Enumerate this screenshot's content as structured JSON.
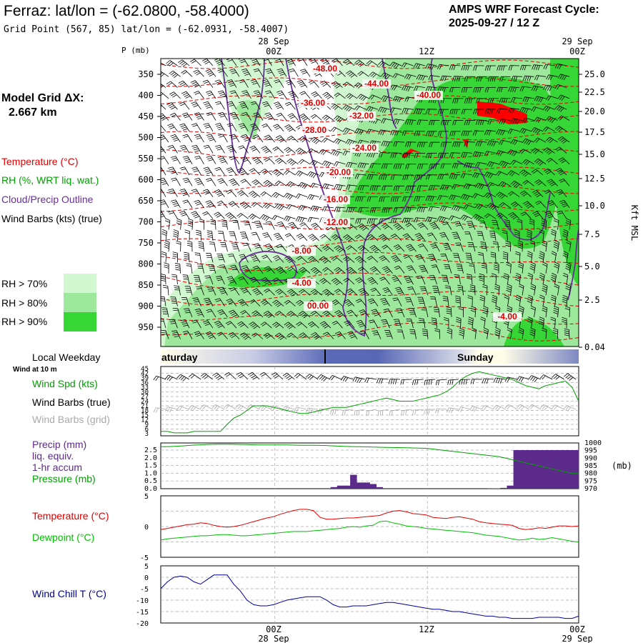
{
  "header": {
    "title": "Ferraz:  lat/lon = (-62.0800, -58.4000)",
    "subtitle": "Grid Point (567, 85) lat/lon = (-62.0931, -58.4007)",
    "cycle_label": "AMPS WRF Forecast Cycle:",
    "cycle_value": "2025-09-27 / 12  Z"
  },
  "model_grid": {
    "label": "Model Grid ΔX:",
    "value": "2.667 km"
  },
  "legend": {
    "temperature": "Temperature (°C)",
    "rh": "RH (%, WRT liq. wat.)",
    "cloud": "Cloud/Precip Outline",
    "wind": "Wind Barbs (kts) (true)",
    "rh70": "RH > 70%",
    "rh80": "RH > 80%",
    "rh90": "RH > 90%"
  },
  "colors": {
    "temperature": "#e00000",
    "rh_text": "#00a000",
    "cloud": "#6a2d9a",
    "rh70": "#d2f8d2",
    "rh80": "#9de89d",
    "rh90": "#36d636",
    "precip": "#5c2a8a",
    "pressure": "#00a000",
    "dewpoint": "#00c000",
    "windchill": "#0000a0",
    "grid_gray": "#aaaaaa"
  },
  "time_axis": {
    "top_dates": [
      "28 Sep",
      "29 Sep"
    ],
    "ticks": [
      "00Z",
      "12Z",
      "00Z"
    ],
    "bottom_dates": [
      "28 Sep",
      "29 Sep"
    ]
  },
  "weekday": {
    "label": "Local Weekday",
    "days": [
      "aturday",
      "Sunday"
    ]
  },
  "wind_panel": {
    "note": "Wind at 10 m",
    "spd_label": "Wind Spd (kts)",
    "barbs_true": "Wind Barbs (true)",
    "barbs_grid": "Wind Barbs (grid)"
  },
  "precip_panel": {
    "label1": "Precip (mm)",
    "label2": "liq. equiv.",
    "label3": "1-hr accum",
    "label4": "Pressure (mb)",
    "right_unit": "(mb)"
  },
  "temp_panel": {
    "t_label": "Temperature (°C)",
    "td_label": "Dewpoint (°C)"
  },
  "chill_panel": {
    "label": "Wind Chill T (°C)"
  },
  "chart_data": [
    {
      "type": "heatmap",
      "name": "cross_section",
      "y_label_left": "P (mb)",
      "y_label_right": "Kft MSL",
      "pressure_ticks": [
        "350",
        "400",
        "450",
        "500",
        "550",
        "600",
        "650",
        "700",
        "750",
        "800",
        "850",
        "900",
        "950"
      ],
      "height_ticks": [
        "25.0",
        "22.5",
        "20.0",
        "17.5",
        "15.0",
        "12.5",
        "10.0",
        "7.5",
        "5.0",
        "2.5",
        "0.04"
      ],
      "isotherm_labels": [
        "-48.00",
        "-44.00",
        "-40.00",
        "-36.00",
        "-32.00",
        "-28.00",
        "-24.00",
        "-20.00",
        "-16.00",
        "-12.00",
        "-8.00",
        "-4.00",
        "00.00",
        "-4.00"
      ]
    },
    {
      "type": "line",
      "name": "wind_speed",
      "y_ticks": [
        "45",
        "42",
        "39",
        "36",
        "33",
        "30",
        "27",
        "24",
        "21",
        "18",
        "15",
        "12",
        "9",
        "6",
        "3"
      ],
      "ylim": [
        3,
        45
      ],
      "series": [
        {
          "values": [
            4.5,
            4.5,
            3.5,
            3.5,
            3.5,
            4.5,
            4.5,
            4.5,
            4.5,
            4.5,
            9,
            13,
            15,
            18,
            21,
            21,
            21,
            20,
            19,
            18,
            17,
            16,
            16,
            17,
            18,
            19,
            20,
            20,
            20,
            21,
            22,
            23,
            24,
            25,
            26,
            25,
            24,
            24,
            24,
            25,
            26,
            27,
            28,
            30,
            33,
            37,
            40,
            42,
            43,
            42,
            41,
            40,
            39,
            38,
            36,
            34,
            33,
            32,
            34,
            35,
            36,
            37,
            33,
            24
          ]
        }
      ]
    },
    {
      "type": "bar",
      "name": "precip_pressure",
      "precip_ticks": [
        "2.5",
        "2.0",
        "1.5",
        "1.0",
        "0.5",
        "0.0"
      ],
      "pressure_ticks": [
        "1000",
        "995",
        "990",
        "985",
        "980",
        "975",
        "970"
      ],
      "ylim_precip": [
        0,
        2.5
      ],
      "ylim_pressure": [
        970,
        1000
      ],
      "precip": [
        0,
        0,
        0,
        0,
        0,
        0,
        0,
        0,
        0,
        0,
        0,
        0,
        0,
        0,
        0,
        0,
        0,
        0,
        0,
        0,
        0,
        0,
        0,
        0,
        0,
        0,
        0.1,
        0.2,
        0.2,
        0.9,
        0.4,
        0.4,
        0.3,
        0.1,
        0,
        0,
        0,
        0,
        0,
        0,
        0,
        0,
        0,
        0,
        0,
        0,
        0,
        0,
        0,
        0,
        0.02,
        0.02,
        0.05,
        0.2,
        2.5,
        2.5,
        2.5,
        2.5,
        2.5,
        2.5,
        2.5,
        2.5,
        2.5,
        2.5
      ],
      "pressure": [
        997.5,
        997.6,
        997.8,
        998,
        998.3,
        998.6,
        998.8,
        999,
        999.1,
        999.2,
        999.2,
        999.1,
        999,
        998.9,
        998.8,
        998.7,
        998.7,
        998.7,
        998.7,
        998.7,
        998.6,
        998.5,
        998.5,
        998.5,
        998.4,
        998.3,
        998.1,
        997.9,
        997.7,
        997.6,
        997.5,
        997.4,
        997.3,
        997.2,
        997.1,
        997,
        996.9,
        996.8,
        996.7,
        996.6,
        996.5,
        996,
        995.5,
        995,
        994.5,
        994,
        993.5,
        993,
        992.5,
        992,
        991.5,
        991,
        990,
        989,
        988,
        987,
        986,
        985,
        984,
        983,
        982,
        981,
        980,
        980
      ]
    },
    {
      "type": "line",
      "name": "temperature_dewpoint",
      "y_ticks": [
        "5",
        "0",
        "-5"
      ],
      "ylim": [
        -5,
        5
      ],
      "series": [
        {
          "name": "Temperature (°C)",
          "values": [
            -0.5,
            -0.3,
            -0.1,
            0.1,
            0.3,
            0.4,
            0.6,
            0.5,
            0.2,
            0,
            -0.1,
            0,
            0.2,
            0.5,
            0.8,
            1.1,
            1.4,
            1.6,
            2,
            2.3,
            2.6,
            2.8,
            2.8,
            2.6,
            1.5,
            1.2,
            1.2,
            1.3,
            1.4,
            1.4,
            1.5,
            1.6,
            1.7,
            1.8,
            2.2,
            2.5,
            2.6,
            2.4,
            2.1,
            2,
            1.9,
            1.5,
            1.4,
            1.3,
            1.5,
            1.6,
            1.4,
            1.2,
            0.8,
            0.6,
            0.5,
            0.4,
            0.3,
            0.2,
            -0.3,
            -0.5,
            -0.4,
            -0.2,
            -0.3,
            -0.1,
            0.1,
            0.1,
            0,
            0.1
          ]
        },
        {
          "name": "Dewpoint (°C)",
          "values": [
            -2.2,
            -2,
            -1.9,
            -1.8,
            -1.7,
            -1.6,
            -1.5,
            -1.5,
            -1.4,
            -1.3,
            -1.3,
            -1.4,
            -1.5,
            -1.5,
            -1.4,
            -1.3,
            -1.2,
            -1.1,
            -1,
            -0.9,
            -0.8,
            -0.8,
            -0.8,
            -0.7,
            -0.6,
            -0.5,
            -0.4,
            -0.3,
            -0.1,
            0,
            -0.1,
            0.1,
            0.2,
            0.8,
            0.9,
            0.6,
            0.4,
            0.1,
            0,
            -0.1,
            -0.3,
            -0.4,
            -0.5,
            -0.6,
            -0.7,
            -0.8,
            -0.9,
            -1,
            -1.2,
            -1.4,
            -1.5,
            -1.6,
            -1.8,
            -2,
            -2.2,
            -2.1,
            -1.9,
            -2.1,
            -2,
            -1.8,
            -2,
            -2.2,
            -2.4,
            -2.5
          ]
        }
      ]
    },
    {
      "type": "line",
      "name": "wind_chill",
      "y_ticks": [
        "5",
        "0",
        "-5",
        "-10",
        "-15",
        "-20"
      ],
      "ylim": [
        -20,
        5
      ],
      "series": [
        {
          "name": "Wind Chill T (°C)",
          "values": [
            -5,
            -2,
            0,
            0.5,
            0,
            -2,
            -3,
            -1,
            1,
            1,
            1,
            -3,
            -6,
            -10,
            -12,
            -12.5,
            -12.5,
            -12,
            -11,
            -10,
            -9.5,
            -9,
            -8.5,
            -8.5,
            -8.5,
            -10,
            -12,
            -13,
            -13,
            -12.5,
            -12.5,
            -12.5,
            -12,
            -11.5,
            -11,
            -11,
            -11.5,
            -12,
            -12.5,
            -13,
            -13.5,
            -14,
            -14,
            -14.5,
            -15,
            -15,
            -15.5,
            -16,
            -16.5,
            -17,
            -17,
            -17.5,
            -17.5,
            -18,
            -18,
            -18,
            -18,
            -17.5,
            -17.5,
            -17.5,
            -17.5,
            -18,
            -18,
            -17
          ]
        }
      ]
    }
  ]
}
